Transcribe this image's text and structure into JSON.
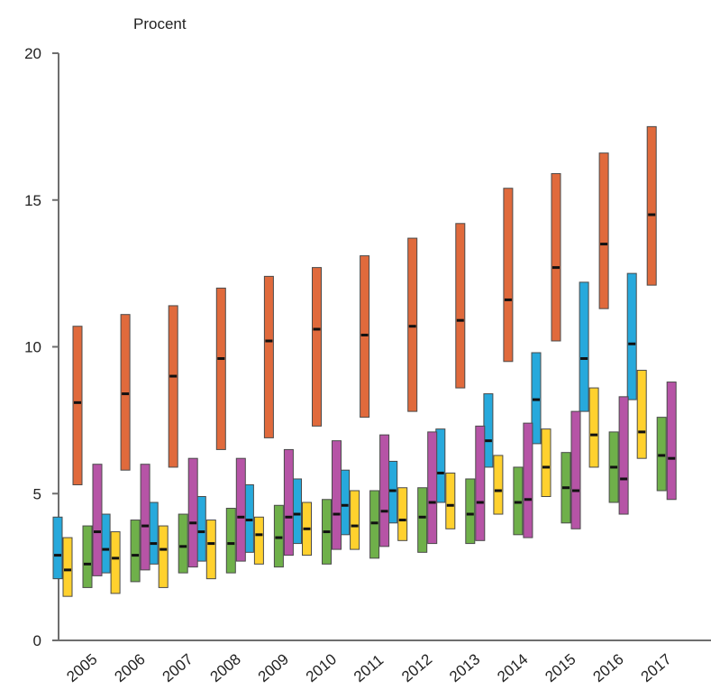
{
  "chart_data": {
    "type": "box",
    "ylabel": "Procent",
    "ylim": [
      0,
      20
    ],
    "yticks": [
      0,
      5,
      10,
      15,
      20
    ],
    "categories": [
      "2005",
      "2006",
      "2007",
      "2008",
      "2009",
      "2010",
      "2011",
      "2012",
      "2013",
      "2014",
      "2015",
      "2016",
      "2017"
    ],
    "grid": false,
    "colors": [
      "#27a9dc",
      "#ffd12e",
      "#e06a3c",
      "#6fb04a",
      "#b654a6"
    ],
    "series": [
      {
        "color": "#27a9dc",
        "ranges": [
          [
            2.1,
            4.2
          ],
          [
            2.3,
            4.3
          ],
          [
            2.6,
            4.7
          ],
          [
            2.7,
            4.9
          ],
          [
            3.0,
            5.3
          ],
          [
            3.3,
            5.5
          ],
          [
            3.6,
            5.8
          ],
          [
            4.0,
            6.1
          ],
          [
            4.7,
            7.2
          ],
          [
            5.9,
            8.4
          ],
          [
            6.7,
            9.8
          ],
          [
            7.8,
            12.2
          ],
          [
            8.2,
            12.5
          ]
        ],
        "medians": [
          2.9,
          3.1,
          3.3,
          3.7,
          4.1,
          4.3,
          4.6,
          5.1,
          5.7,
          6.8,
          8.2,
          9.6,
          10.1
        ]
      },
      {
        "color": "#ffd12e",
        "ranges": [
          [
            1.5,
            3.5
          ],
          [
            1.6,
            3.7
          ],
          [
            1.8,
            3.9
          ],
          [
            2.1,
            4.1
          ],
          [
            2.6,
            4.2
          ],
          [
            2.9,
            4.7
          ],
          [
            3.1,
            5.1
          ],
          [
            3.4,
            5.2
          ],
          [
            3.8,
            5.7
          ],
          [
            4.3,
            6.3
          ],
          [
            4.9,
            7.2
          ],
          [
            5.9,
            8.6
          ],
          [
            6.2,
            9.2
          ]
        ],
        "medians": [
          2.4,
          2.8,
          3.1,
          3.3,
          3.6,
          3.8,
          3.9,
          4.1,
          4.6,
          5.1,
          5.9,
          7.0,
          7.1
        ]
      },
      {
        "color": "#6fb04a",
        "ranges": [
          [
            1.8,
            3.9
          ],
          [
            2.0,
            4.1
          ],
          [
            2.3,
            4.3
          ],
          [
            2.3,
            4.5
          ],
          [
            2.5,
            4.6
          ],
          [
            2.6,
            4.8
          ],
          [
            2.8,
            5.1
          ],
          [
            3.0,
            5.2
          ],
          [
            3.3,
            5.5
          ],
          [
            3.6,
            5.9
          ],
          [
            4.0,
            6.4
          ],
          [
            4.7,
            7.1
          ],
          [
            5.1,
            7.6
          ]
        ],
        "medians": [
          2.6,
          2.9,
          3.2,
          3.3,
          3.5,
          3.7,
          4.0,
          4.2,
          4.3,
          4.7,
          5.2,
          5.9,
          6.3
        ]
      },
      {
        "color": "#b654a6",
        "ranges": [
          [
            2.2,
            6.0
          ],
          [
            2.4,
            6.0
          ],
          [
            2.5,
            6.2
          ],
          [
            2.7,
            6.2
          ],
          [
            2.9,
            6.5
          ],
          [
            3.1,
            6.8
          ],
          [
            3.2,
            7.0
          ],
          [
            3.3,
            7.1
          ],
          [
            3.4,
            7.3
          ],
          [
            3.5,
            7.4
          ],
          [
            3.8,
            7.8
          ],
          [
            4.3,
            8.3
          ],
          [
            4.8,
            8.8
          ]
        ],
        "medians": [
          3.7,
          3.9,
          4.0,
          4.2,
          4.2,
          4.3,
          4.4,
          4.7,
          4.7,
          4.8,
          5.1,
          5.5,
          6.2
        ]
      },
      {
        "color": "#e06a3c",
        "ranges": [
          [
            5.3,
            10.7
          ],
          [
            5.8,
            11.1
          ],
          [
            5.9,
            11.4
          ],
          [
            6.5,
            12.0
          ],
          [
            6.9,
            12.4
          ],
          [
            7.3,
            12.7
          ],
          [
            7.6,
            13.1
          ],
          [
            7.8,
            13.7
          ],
          [
            8.6,
            14.2
          ],
          [
            9.5,
            15.4
          ],
          [
            10.2,
            15.9
          ],
          [
            11.3,
            16.6
          ],
          [
            12.1,
            17.5
          ]
        ],
        "medians": [
          8.1,
          8.4,
          9.0,
          9.6,
          10.2,
          10.6,
          10.4,
          10.7,
          10.9,
          11.6,
          12.7,
          13.5,
          14.5
        ]
      }
    ]
  }
}
